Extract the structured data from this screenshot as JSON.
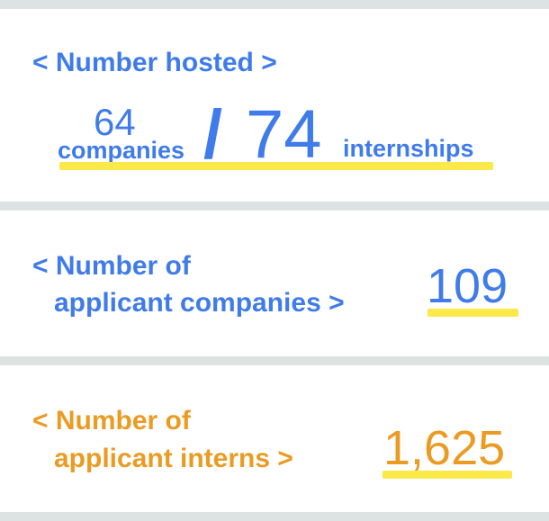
{
  "colors": {
    "blue": "#3f7bea",
    "orange": "#eb9b22",
    "highlight": "#fbe94a",
    "card": "#ffffff",
    "background": "#dde3e2"
  },
  "hosted": {
    "heading": "< Number hosted >",
    "companies_value": "64",
    "companies_label": "companies",
    "separator": "/",
    "internships_value": "74",
    "internships_label": "internships"
  },
  "applicant_companies": {
    "heading_line1": "< Number of",
    "heading_line2": "applicant companies >",
    "value": "109"
  },
  "applicant_interns": {
    "heading_line1": "< Number of",
    "heading_line2": "applicant interns >",
    "value": "1,625"
  }
}
